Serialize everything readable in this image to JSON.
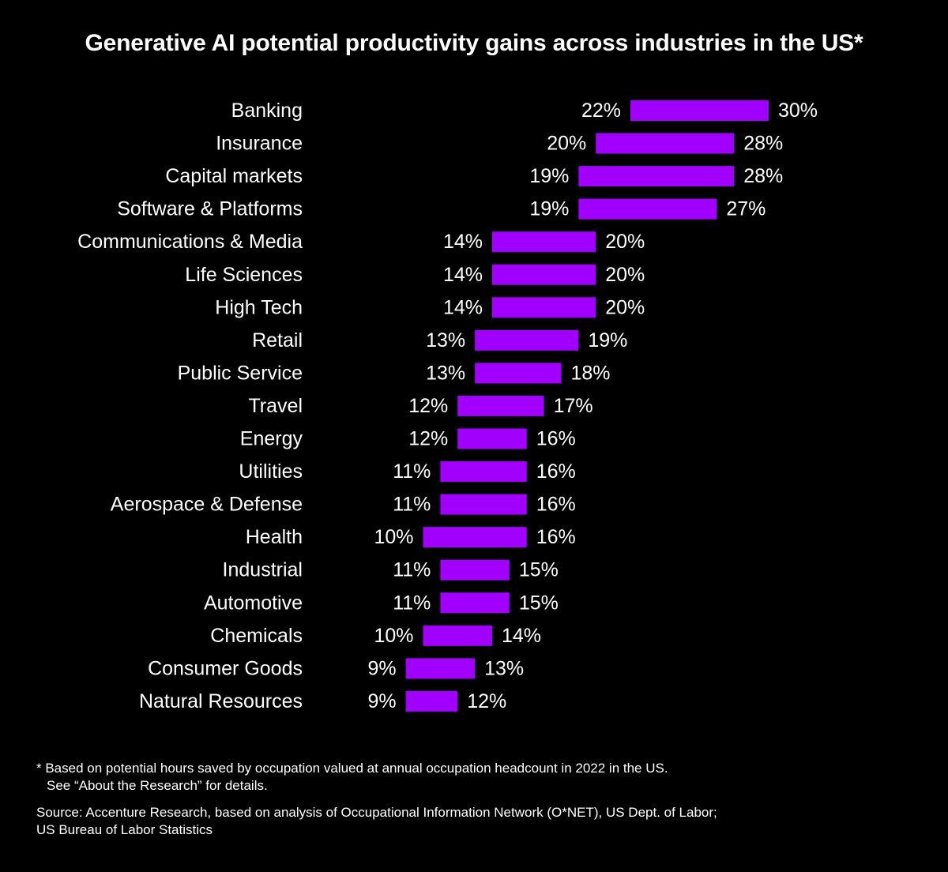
{
  "chart_data": {
    "type": "bar",
    "title": "Generative AI potential productivity gains across industries in the US*",
    "xlabel": "",
    "ylabel": "",
    "categories": [
      "Banking",
      "Insurance",
      "Capital markets",
      "Software & Platforms",
      "Communications & Media",
      "Life Sciences",
      "High Tech",
      "Retail",
      "Public Service",
      "Travel",
      "Energy",
      "Utilities",
      "Aerospace & Defense",
      "Health",
      "Industrial",
      "Automotive",
      "Chemicals",
      "Consumer Goods",
      "Natural Resources"
    ],
    "series": [
      {
        "values": [
          22,
          20,
          19,
          19,
          14,
          14,
          14,
          13,
          13,
          12,
          12,
          11,
          11,
          10,
          11,
          11,
          10,
          9,
          9
        ]
      },
      {
        "values": [
          30,
          28,
          28,
          27,
          20,
          20,
          20,
          19,
          18,
          17,
          16,
          16,
          16,
          16,
          15,
          15,
          14,
          13,
          12
        ]
      }
    ],
    "low_labels": [
      "22%",
      "20%",
      "19%",
      "19%",
      "14%",
      "14%",
      "14%",
      "13%",
      "13%",
      "12%",
      "12%",
      "11%",
      "11%",
      "10%",
      "11%",
      "11%",
      "10%",
      "9%",
      "9%"
    ],
    "high_labels": [
      "30%",
      "28%",
      "28%",
      "27%",
      "20%",
      "20%",
      "20%",
      "19%",
      "18%",
      "17%",
      "16%",
      "16%",
      "16%",
      "16%",
      "15%",
      "15%",
      "14%",
      "13%",
      "12%"
    ],
    "bar_color": "#A100FF",
    "background_color": "#000000",
    "text_color": "#FFFFFF",
    "grid": false,
    "legend": "none"
  },
  "footnote": {
    "line1": "* Based on potential hours saved by occupation valued at annual occupation headcount in 2022 in the US.",
    "line2": "See “About the Research” for details."
  },
  "source": {
    "line1": "Source: Accenture Research, based on analysis of Occupational Information Network (O*NET), US Dept. of Labor;",
    "line2": "US Bureau of Labor Statistics"
  }
}
